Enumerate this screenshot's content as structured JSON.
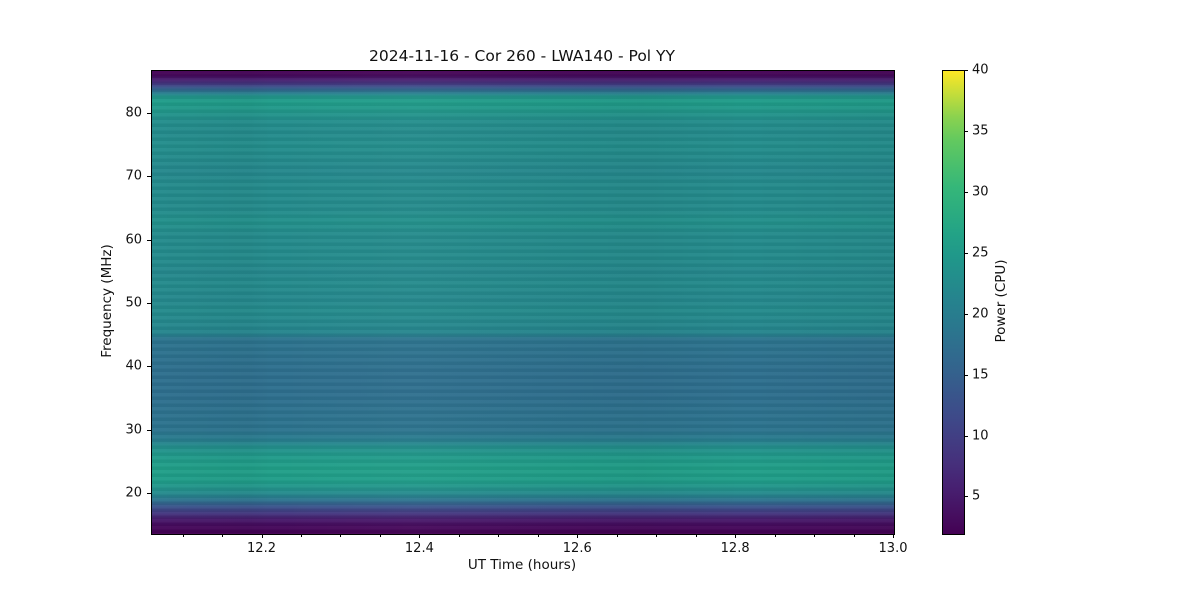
{
  "chart_data": {
    "type": "heatmap",
    "title": "2024-11-16 - Cor 260 - LWA140 - Pol YY",
    "xlabel": "UT Time (hours)",
    "ylabel": "Frequency (MHz)",
    "colorbar_label": "Power (CPU)",
    "colormap": "viridis",
    "background_color": "#ffffff",
    "x_range_hours": [
      12.06,
      13.0
    ],
    "y_range_mhz": [
      13.7,
      86.8
    ],
    "color_range": [
      2,
      40
    ],
    "x_ticks": [
      12.2,
      12.4,
      12.6,
      12.8,
      13.0
    ],
    "x_tick_labels": [
      "12.2",
      "12.4",
      "12.6",
      "12.8",
      "13.0"
    ],
    "x_minor_tick_step": 0.05,
    "y_ticks": [
      20,
      30,
      40,
      50,
      60,
      70,
      80
    ],
    "y_tick_labels": [
      "20",
      "30",
      "40",
      "50",
      "60",
      "70",
      "80"
    ],
    "colorbar_ticks": [
      5,
      10,
      15,
      20,
      25,
      30,
      35,
      40
    ],
    "colorbar_tick_labels": [
      "5",
      "10",
      "15",
      "20",
      "25",
      "30",
      "35",
      "40"
    ],
    "grid": false,
    "legend": "none",
    "time_structure": "spectrum nearly constant over time; only faint column-to-column variations",
    "spectrum_profile": {
      "freq_mhz": [
        86.8,
        86.2,
        85.3,
        84.6,
        84.0,
        83.3,
        82.8,
        82.0,
        80.5,
        79,
        77,
        75,
        73,
        71,
        69,
        67,
        65,
        63,
        61,
        59,
        57,
        55,
        53,
        51,
        49,
        47,
        45.5,
        44.5,
        42,
        39,
        36,
        33,
        30,
        28.5,
        27.5,
        26,
        24,
        22,
        21,
        20,
        19,
        18,
        17,
        16,
        15,
        13.7
      ],
      "power_cpu": [
        2,
        2.5,
        6,
        10,
        15,
        20,
        24,
        25.5,
        24.5,
        23,
        22.5,
        23,
        22.5,
        22,
        22.5,
        22.5,
        22.5,
        23.5,
        22.5,
        22.5,
        22.5,
        22,
        22.5,
        22,
        22.5,
        22,
        21.5,
        18.5,
        18,
        17.5,
        17.5,
        18,
        18.5,
        20,
        23,
        25,
        26,
        25.5,
        24,
        22,
        18,
        13,
        9,
        5,
        3,
        2
      ]
    }
  }
}
